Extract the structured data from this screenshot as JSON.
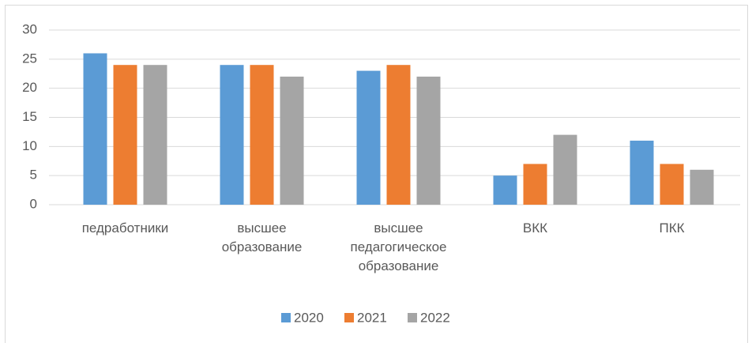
{
  "chart_data": {
    "type": "bar",
    "categories": [
      "педработники",
      "высшее образование",
      "высшее педагогическое образование",
      "ВКК",
      "ПКК"
    ],
    "series": [
      {
        "name": "2020",
        "color": "#5b9bd5",
        "values": [
          26,
          24,
          23,
          5,
          11
        ]
      },
      {
        "name": "2021",
        "color": "#ed7d31",
        "values": [
          24,
          24,
          24,
          7,
          7
        ]
      },
      {
        "name": "2022",
        "color": "#a5a5a5",
        "values": [
          24,
          22,
          22,
          12,
          6
        ]
      }
    ],
    "ylim": [
      0,
      30
    ],
    "yticks": [
      0,
      5,
      10,
      15,
      20,
      25,
      30
    ],
    "grid": true,
    "legend": "bottom"
  }
}
